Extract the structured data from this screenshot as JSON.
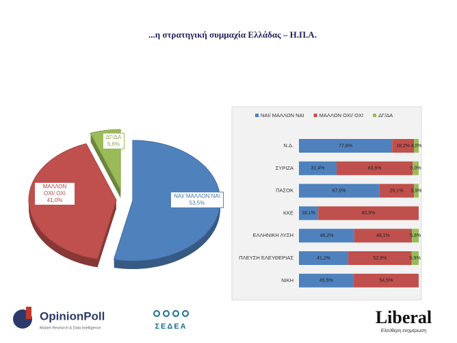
{
  "title": "...η στρατηγική συμμαχία Ελλάδας – Η.Π.Α.",
  "chart_data": [
    {
      "type": "pie",
      "categories": [
        "ΝΑΙ/ ΜΑΛΛΟΝ ΝΑΙ",
        "ΜΑΛΛΟΝ ΟΧΙ/ ΟΧΙ",
        "ΔΓ/ΔΑ"
      ],
      "values": [
        53.5,
        41.0,
        5.6
      ],
      "value_labels": [
        "53,5%",
        "41,0%",
        "5,6%"
      ],
      "colors": [
        "#4f81bd",
        "#c0504d",
        "#9bbb59"
      ]
    },
    {
      "type": "stacked-barh",
      "categories": [
        "Ν.Δ.",
        "ΣΥΡΙΖΑ",
        "ΠΑΣΟΚ",
        "ΚΚΕ",
        "ΕΛΛΗΝΙΚΗ ΛΥΣΗ",
        "ΠΛΕΥΣΗ ΕΛΕΥΘΕΡΙΑΣ",
        "ΝΙΚΗ"
      ],
      "series": [
        {
          "name": "ΝΑΙ/ ΜΑΛΛΟΝ ΝΑΙ",
          "color": "#4f81bd",
          "values": [
            77.8,
            31.4,
            67.0,
            16.1,
            46.2,
            41.2,
            45.5
          ],
          "value_labels": [
            "77,8%",
            "31,4%",
            "67,0%",
            "16,1%",
            "46,2%",
            "41,2%",
            "45,5%"
          ]
        },
        {
          "name": "ΜΑΛΛΟΝ ΟΧΙ/ ΟΧΙ",
          "color": "#c0504d",
          "values": [
            18.2,
            63.6,
            29.1,
            83.9,
            48.1,
            52.9,
            54.5
          ],
          "value_labels": [
            "18,2%",
            "63,6%",
            "29,1%",
            "83,9%",
            "48,1%",
            "52,9%",
            "54,5%"
          ]
        },
        {
          "name": "ΔΓ/ΔΑ",
          "color": "#9bbb59",
          "values": [
            4.0,
            5.0,
            3.9,
            null,
            5.8,
            5.9,
            null
          ],
          "value_labels": [
            "4,0%",
            "5,0%",
            "3,9%",
            null,
            "5,8%",
            "5,9%",
            null
          ]
        }
      ],
      "xlim": [
        0,
        100
      ],
      "legend": "top"
    }
  ],
  "logos": {
    "opinionpoll": "OpinionPoll",
    "opinionpoll_tagline": "Market Research & Data Intelligence",
    "sedea": "ΣΕΔΕΑ",
    "liberal": "Liberal",
    "liberal_tagline": "Ελεύθερη ενημέρωση"
  }
}
